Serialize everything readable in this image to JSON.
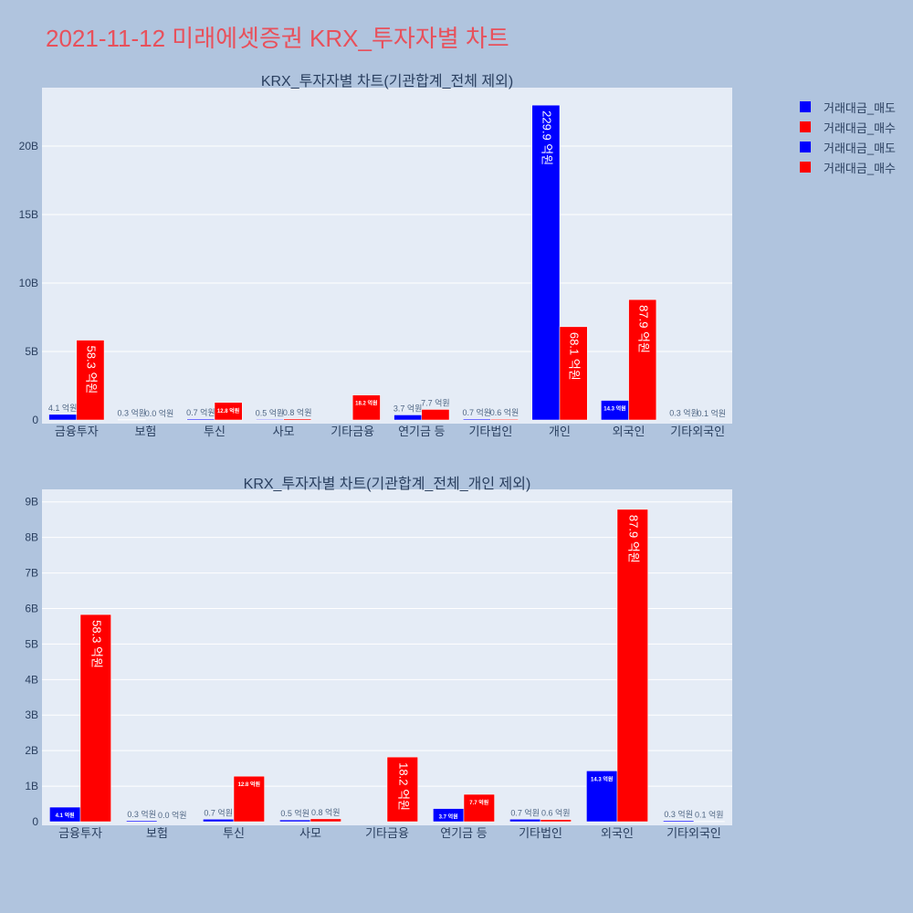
{
  "title": "2021-11-12 미래에셋증권 KRX_투자자별 차트",
  "colors": {
    "sell": "#0000ff",
    "buy": "#ff0000"
  },
  "legend": [
    {
      "label": "거래대금_매도",
      "color": "#0000ff"
    },
    {
      "label": "거래대금_매수",
      "color": "#ff0000"
    },
    {
      "label": "거래대금_매도",
      "color": "#0000ff"
    },
    {
      "label": "거래대금_매수",
      "color": "#ff0000"
    }
  ],
  "chart_data": [
    {
      "type": "bar",
      "title": "KRX_투자자별 차트(기관합계_전체 제외)",
      "categories": [
        "금융투자",
        "보험",
        "투신",
        "사모",
        "기타금융",
        "연기금 등",
        "기타법인",
        "개인",
        "외국인",
        "기타외국인"
      ],
      "ylim": [
        0,
        24000000000
      ],
      "yticks": [
        0,
        5000000000,
        10000000000,
        15000000000,
        20000000000
      ],
      "ytick_labels": [
        "0",
        "5B",
        "10B",
        "15B",
        "20B"
      ],
      "grid": true,
      "series": [
        {
          "name": "거래대금_매도",
          "values": [
            410000000,
            30000000,
            70000000,
            50000000,
            0,
            370000000,
            70000000,
            22990000000,
            1430000000,
            30000000
          ],
          "labels": [
            "4.1 억원",
            "0.3 억원",
            "0.7 억원",
            "0.5 억원",
            "",
            "3.7 억원",
            "0.7 억원",
            "229.9 억원",
            "14.3 억원",
            "0.3 억원"
          ]
        },
        {
          "name": "거래대금_매수",
          "values": [
            5830000000,
            0,
            1280000000,
            80000000,
            1820000000,
            770000000,
            60000000,
            6810000000,
            8790000000,
            10000000
          ],
          "labels": [
            "58.3 억원",
            "0.0 억원",
            "12.8 억원",
            "0.8 억원",
            "18.2 억원",
            "7.7 억원",
            "0.6 억원",
            "68.1 억원",
            "87.9 억원",
            "0.1 억원"
          ]
        }
      ]
    },
    {
      "type": "bar",
      "title": "KRX_투자자별 차트(기관합계_전체_개인 제외)",
      "categories": [
        "금융투자",
        "보험",
        "투신",
        "사모",
        "기타금융",
        "연기금 등",
        "기타법인",
        "외국인",
        "기타외국인"
      ],
      "ylim": [
        0,
        9250000000
      ],
      "yticks": [
        0,
        1000000000,
        2000000000,
        3000000000,
        4000000000,
        5000000000,
        6000000000,
        7000000000,
        8000000000,
        9000000000
      ],
      "ytick_labels": [
        "0",
        "1B",
        "2B",
        "3B",
        "4B",
        "5B",
        "6B",
        "7B",
        "8B",
        "9B"
      ],
      "grid": true,
      "series": [
        {
          "name": "거래대금_매도",
          "values": [
            410000000,
            30000000,
            70000000,
            50000000,
            0,
            370000000,
            70000000,
            1430000000,
            30000000
          ],
          "labels": [
            "4.1 억원",
            "0.3 억원",
            "0.7 억원",
            "0.5 억원",
            "",
            "3.7 억원",
            "0.7 억원",
            "14.3 억원",
            "0.3 억원"
          ]
        },
        {
          "name": "거래대금_매수",
          "values": [
            5830000000,
            0,
            1280000000,
            80000000,
            1820000000,
            770000000,
            60000000,
            8790000000,
            10000000
          ],
          "labels": [
            "58.3 억원",
            "0.0 억원",
            "12.8 억원",
            "0.8 억원",
            "18.2 억원",
            "7.7 억원",
            "0.6 억원",
            "87.9 억원",
            "0.1 억원"
          ]
        }
      ]
    }
  ]
}
